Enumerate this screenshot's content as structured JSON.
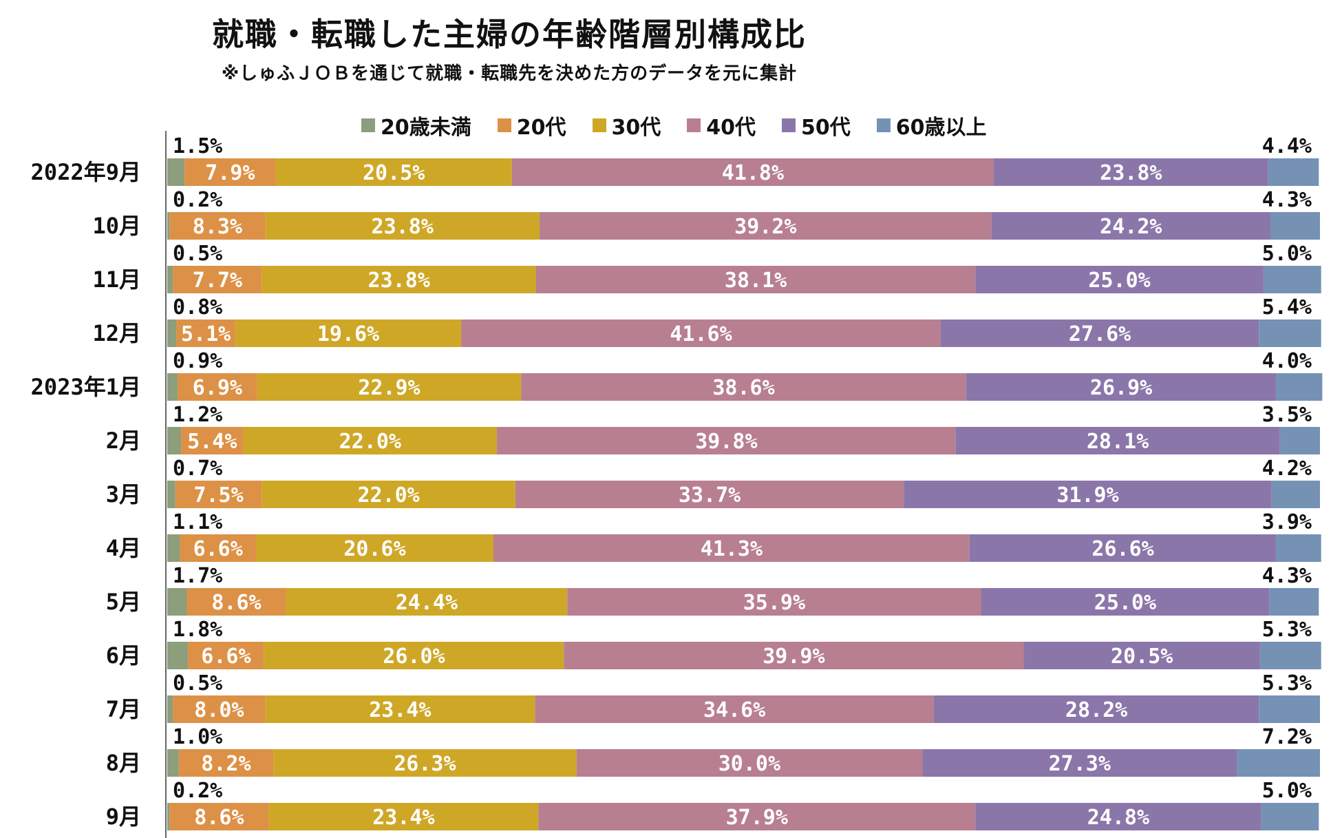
{
  "title": "就職・転職した主婦の年齢階層別構成比",
  "subtitle": "※しゅふＪＯＢを通じて就職・転職先を決めた方のデータを元に集計",
  "chart_data": {
    "type": "bar",
    "orientation": "horizontal",
    "stacked": true,
    "percent_stacked": true,
    "legend_position": "top",
    "grid": false,
    "xlim": [
      0,
      100
    ],
    "categories": [
      "2022年9月",
      "10月",
      "11月",
      "12月",
      "2023年1月",
      "2月",
      "3月",
      "4月",
      "5月",
      "6月",
      "7月",
      "8月",
      "9月"
    ],
    "series": [
      {
        "name": "20歳未満",
        "color": "#8c9e7c",
        "values": [
          1.5,
          0.2,
          0.5,
          0.8,
          0.9,
          1.2,
          0.7,
          1.1,
          1.7,
          1.8,
          0.5,
          1.0,
          0.2
        ]
      },
      {
        "name": "20代",
        "color": "#dd9146",
        "values": [
          7.9,
          8.3,
          7.7,
          5.1,
          6.9,
          5.4,
          7.5,
          6.6,
          8.6,
          6.6,
          8.0,
          8.2,
          8.6
        ]
      },
      {
        "name": "30代",
        "color": "#cfa727",
        "values": [
          20.5,
          23.8,
          23.8,
          19.6,
          22.9,
          22.0,
          22.0,
          20.6,
          24.4,
          26.0,
          23.4,
          26.3,
          23.4
        ]
      },
      {
        "name": "40代",
        "color": "#b87f91",
        "values": [
          41.8,
          39.2,
          38.1,
          41.6,
          38.6,
          39.8,
          33.7,
          41.3,
          35.9,
          39.9,
          34.6,
          30.0,
          37.9
        ]
      },
      {
        "name": "50代",
        "color": "#8b76aa",
        "values": [
          23.8,
          24.2,
          25.0,
          27.6,
          26.9,
          28.1,
          31.9,
          26.6,
          25.0,
          20.5,
          28.2,
          27.3,
          24.8
        ]
      },
      {
        "name": "60歳以上",
        "color": "#7592b4",
        "values": [
          4.4,
          4.3,
          5.0,
          5.4,
          4.0,
          3.5,
          4.2,
          3.9,
          4.3,
          5.3,
          5.3,
          7.2,
          5.0
        ]
      }
    ],
    "value_suffix": "%"
  }
}
